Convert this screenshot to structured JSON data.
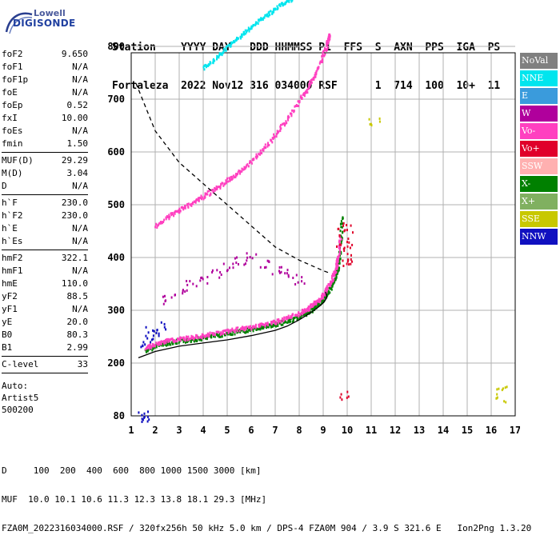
{
  "logo": {
    "line1": "Lowell",
    "line2": "DIGISONDE"
  },
  "header": {
    "labels_line": "Station    YYYY DAY   DDD HHMMSS P1  FFS  S  AXN  PPS  IGA  PS",
    "values_line": "Fortaleza  2022 Nov12 316 034000 RSF      1  714  100  10+  11"
  },
  "params": {
    "group1": [
      {
        "name": "foF2",
        "value": "9.650"
      },
      {
        "name": "foF1",
        "value": "N/A"
      },
      {
        "name": "foF1p",
        "value": "N/A"
      },
      {
        "name": "foE",
        "value": "N/A"
      },
      {
        "name": "foEp",
        "value": "0.52"
      },
      {
        "name": "fxI",
        "value": "10.00"
      },
      {
        "name": "foEs",
        "value": "N/A"
      },
      {
        "name": "fmin",
        "value": "1.50"
      }
    ],
    "group2": [
      {
        "name": "MUF(D)",
        "value": "29.29"
      },
      {
        "name": "M(D)",
        "value": "3.04"
      },
      {
        "name": "D",
        "value": "N/A"
      }
    ],
    "group3": [
      {
        "name": "h`F",
        "value": "230.0"
      },
      {
        "name": "h`F2",
        "value": "230.0"
      },
      {
        "name": "h`E",
        "value": "N/A"
      },
      {
        "name": "h`Es",
        "value": "N/A"
      }
    ],
    "group4": [
      {
        "name": "hmF2",
        "value": "322.1"
      },
      {
        "name": "hmF1",
        "value": "N/A"
      },
      {
        "name": "hmE",
        "value": "110.0"
      },
      {
        "name": "yF2",
        "value": "88.5"
      },
      {
        "name": "yF1",
        "value": "N/A"
      },
      {
        "name": "yE",
        "value": "20.0"
      },
      {
        "name": "B0",
        "value": "80.3"
      },
      {
        "name": "B1",
        "value": "2.99"
      }
    ],
    "group5": [
      {
        "name": "C-level",
        "value": "33"
      }
    ],
    "autoscale": [
      "Auto:",
      "Artist5",
      "500200"
    ]
  },
  "legend": [
    {
      "label": "NoVal",
      "color": "#808080"
    },
    {
      "label": "NNE",
      "color": "#00e5ee"
    },
    {
      "label": "E",
      "color": "#3a9bdc"
    },
    {
      "label": "W",
      "color": "#b0009c"
    },
    {
      "label": "Vo-",
      "color": "#ff40c0"
    },
    {
      "label": "Vo+",
      "color": "#e0002a"
    },
    {
      "label": "SSW",
      "color": "#ffb0b0"
    },
    {
      "label": "X-",
      "color": "#008000"
    },
    {
      "label": "X+",
      "color": "#80b060"
    },
    {
      "label": "SSE",
      "color": "#c8c800"
    },
    {
      "label": "NNW",
      "color": "#1010c0"
    }
  ],
  "footer": {
    "line1": "D     100  200  400  600  800 1000 1500 3000 [km]",
    "line2": "MUF  10.0 10.1 10.6 11.3 12.3 13.8 18.1 29.3 [MHz]",
    "line3": "FZA0M_2022316034000.RSF / 320fx256h 50 kHz 5.0 km / DPS-4 FZA0M 904 / 3.9 S 321.6 E   Ion2Png 1.3.20"
  },
  "chart_data": {
    "type": "scatter",
    "title": "",
    "xlabel": "",
    "ylabel": "",
    "xlim": [
      1,
      17
    ],
    "ylim": [
      80,
      900
    ],
    "xticks": [
      1,
      2,
      3,
      4,
      5,
      6,
      7,
      8,
      9,
      10,
      11,
      12,
      13,
      14,
      15,
      16,
      17
    ],
    "yticks": [
      80,
      200,
      300,
      400,
      500,
      600,
      700,
      800,
      900
    ],
    "grid": true,
    "series": [
      {
        "kind": "trace",
        "color_key": "X-",
        "x": [
          1.6,
          2,
          2.5,
          3,
          3.5,
          4,
          4.5,
          5,
          5.5,
          6,
          6.5,
          7,
          7.5,
          8,
          8.3,
          8.6,
          8.9,
          9.1,
          9.3,
          9.5,
          9.6,
          9.7,
          9.75
        ],
        "y": [
          225,
          235,
          240,
          243,
          246,
          250,
          254,
          258,
          262,
          266,
          270,
          275,
          281,
          290,
          297,
          306,
          318,
          330,
          345,
          365,
          385,
          420,
          480
        ]
      },
      {
        "kind": "trace",
        "color_key": "Vo-",
        "x": [
          1.6,
          2,
          2.5,
          3,
          3.5,
          4,
          4.5,
          5,
          5.5,
          6,
          6.5,
          7,
          7.5,
          8,
          8.3,
          8.6,
          8.9,
          9.1,
          9.3,
          9.5,
          9.6,
          9.7
        ],
        "y": [
          230,
          238,
          244,
          247,
          250,
          254,
          258,
          262,
          266,
          270,
          275,
          280,
          287,
          296,
          304,
          314,
          326,
          340,
          356,
          378,
          400,
          440
        ]
      },
      {
        "kind": "trace",
        "color_key": "Vo-",
        "x": [
          2,
          2.5,
          3,
          3.5,
          4,
          4.5,
          5,
          5.5,
          6,
          6.5,
          7,
          7.5,
          8,
          8.3,
          8.6,
          8.9,
          9.1,
          9.25
        ],
        "y": [
          460,
          478,
          492,
          505,
          518,
          532,
          548,
          565,
          585,
          608,
          635,
          665,
          700,
          720,
          745,
          775,
          800,
          825
        ]
      },
      {
        "kind": "trace",
        "color_key": "NNE",
        "x": [
          4,
          4.5,
          5,
          5.5,
          6,
          6.5,
          7,
          7.5,
          8,
          8.5
        ],
        "y": [
          760,
          780,
          800,
          820,
          840,
          858,
          874,
          888,
          900,
          915
        ]
      },
      {
        "kind": "scatter",
        "color_key": "W",
        "x": [
          2.5,
          3,
          3.5,
          4,
          4.5,
          5,
          5.5,
          6,
          6.5,
          7,
          7.5,
          8
        ],
        "y": [
          320,
          340,
          350,
          360,
          370,
          380,
          395,
          400,
          390,
          380,
          370,
          360
        ]
      },
      {
        "kind": "scatter",
        "color_key": "NNW",
        "x": [
          1.6,
          1.8,
          2,
          2.2,
          1.4,
          1.5
        ],
        "y": [
          240,
          260,
          250,
          270,
          80,
          82
        ]
      },
      {
        "kind": "scatter",
        "color_key": "Vo+",
        "x": [
          9.7,
          9.8,
          9.9,
          10,
          10.1,
          10.2,
          9.9
        ],
        "y": [
          420,
          450,
          390,
          460,
          430,
          400,
          130
        ]
      },
      {
        "kind": "scatter",
        "color_key": "SSE",
        "x": [
          11.1,
          16.4,
          16.4
        ],
        "y": [
          660,
          120,
          150
        ]
      },
      {
        "kind": "profile",
        "name": "",
        "style": "solid",
        "x": [
          1.3,
          2,
          3,
          4,
          5,
          6,
          7,
          7.5,
          8,
          8.5,
          8.8,
          9,
          9.1,
          9.15,
          9.1
        ],
        "y": [
          210,
          222,
          232,
          238,
          244,
          252,
          262,
          270,
          282,
          296,
          306,
          314,
          320,
          325,
          335
        ]
      },
      {
        "kind": "profile",
        "name": "",
        "style": "dashed",
        "x": [
          1.2,
          2,
          3,
          4,
          5,
          6,
          7,
          8,
          9,
          9.3
        ],
        "y": [
          730,
          640,
          580,
          540,
          500,
          460,
          420,
          395,
          375,
          370
        ]
      }
    ]
  }
}
